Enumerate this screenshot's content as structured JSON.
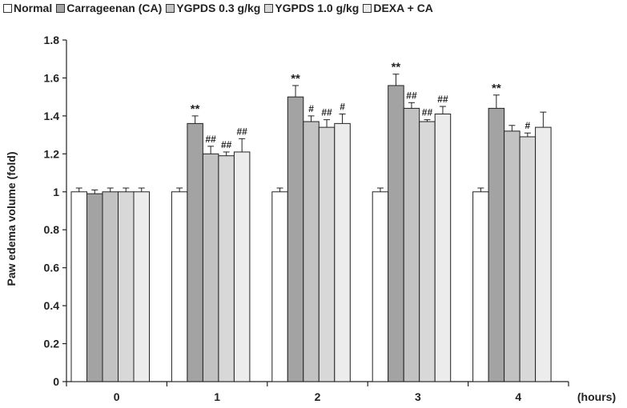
{
  "chart_data": {
    "type": "bar",
    "categories": [
      "0",
      "1",
      "2",
      "3",
      "4"
    ],
    "xlabel": "(hours)",
    "ylabel": "Paw edema volume (fold)",
    "ylim": [
      0,
      1.8
    ],
    "yticks": [
      "0",
      "0.2",
      "0.4",
      "0.6",
      "0.8",
      "1",
      "1.2",
      "1.4",
      "1.6",
      "1.8"
    ],
    "legend_position": "top",
    "grid": false,
    "series": [
      {
        "name": "Normal",
        "color": "#ffffff",
        "values": [
          1.0,
          1.0,
          1.0,
          1.0,
          1.0
        ],
        "errors": [
          0.02,
          0.02,
          0.02,
          0.02,
          0.02
        ],
        "annotations": [
          "",
          "",
          "",
          "",
          ""
        ]
      },
      {
        "name": "Carrageenan (CA)",
        "color": "#a3a3a3",
        "values": [
          0.99,
          1.36,
          1.5,
          1.56,
          1.44
        ],
        "errors": [
          0.02,
          0.04,
          0.06,
          0.06,
          0.07
        ],
        "annotations": [
          "",
          "**",
          "**",
          "**",
          "**"
        ]
      },
      {
        "name": "YGPDS 0.3 g/kg",
        "color": "#c2c2c2",
        "values": [
          1.0,
          1.2,
          1.37,
          1.44,
          1.32
        ],
        "errors": [
          0.02,
          0.04,
          0.03,
          0.03,
          0.03
        ],
        "annotations": [
          "",
          "##",
          "#",
          "##",
          ""
        ]
      },
      {
        "name": "YGPDS 1.0 g/kg",
        "color": "#d8d8d8",
        "values": [
          1.0,
          1.19,
          1.34,
          1.37,
          1.29
        ],
        "errors": [
          0.02,
          0.02,
          0.04,
          0.01,
          0.02
        ],
        "annotations": [
          "",
          "##",
          "##",
          "##",
          "#"
        ]
      },
      {
        "name": "DEXA  + CA",
        "color": "#ececec",
        "values": [
          1.0,
          1.21,
          1.36,
          1.41,
          1.34
        ],
        "errors": [
          0.02,
          0.07,
          0.05,
          0.04,
          0.08
        ],
        "annotations": [
          "",
          "##",
          "#",
          "##",
          ""
        ]
      }
    ]
  }
}
